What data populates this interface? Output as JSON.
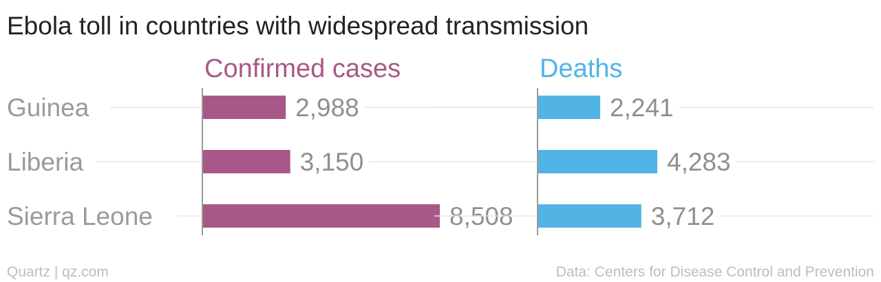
{
  "chart_data": {
    "type": "bar",
    "orientation": "horizontal",
    "title": "Ebola toll in countries with widespread transmission",
    "categories": [
      "Guinea",
      "Liberia",
      "Sierra Leone"
    ],
    "series": [
      {
        "name": "Confirmed cases",
        "color": "#a85887",
        "values": [
          2988,
          3150,
          8508
        ],
        "labels": [
          "2,988",
          "3,150",
          "8,508"
        ]
      },
      {
        "name": "Deaths",
        "color": "#52b3e5",
        "values": [
          2241,
          4283,
          3712
        ],
        "labels": [
          "2,241",
          "4,283",
          "3,712"
        ]
      }
    ],
    "grid": true,
    "legend": "none"
  },
  "footer": {
    "source_left": "Quartz | qz.com",
    "source_right": "Data: Centers for Disease Control and Prevention"
  }
}
